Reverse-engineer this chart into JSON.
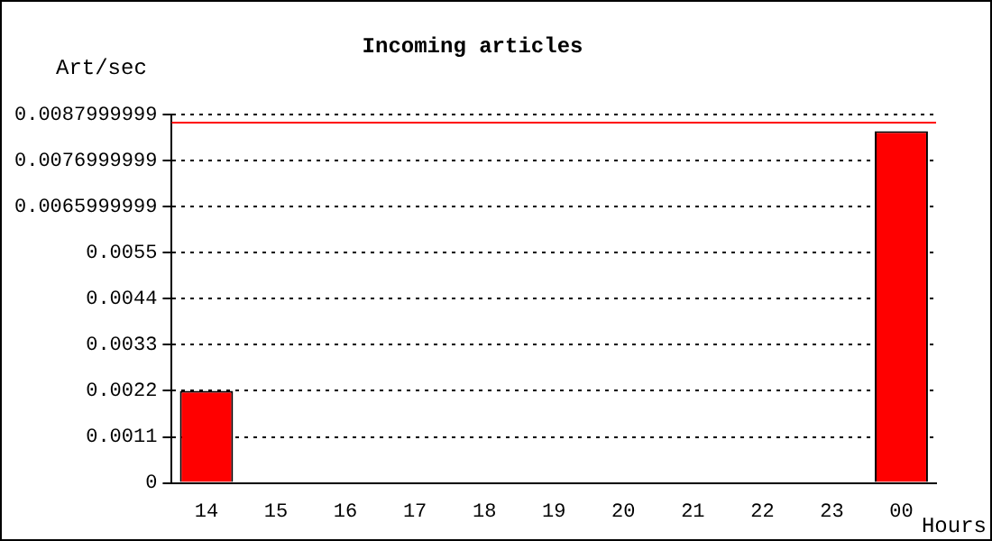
{
  "chart_data": {
    "type": "bar",
    "title": "Incoming articles",
    "xlabel": "Hours",
    "ylabel": "Art/sec",
    "categories": [
      "14",
      "15",
      "16",
      "17",
      "18",
      "19",
      "20",
      "21",
      "22",
      "23",
      "00"
    ],
    "values": [
      0.0022,
      0,
      0,
      0,
      0,
      0,
      0,
      0,
      0,
      0,
      0.0084
    ],
    "color": "#ff0000",
    "ylim": [
      0,
      0.0088
    ],
    "yticks": [
      0,
      0.0011,
      0.0022,
      0.0033,
      0.0044,
      0.0055,
      0.0065999999,
      0.0076999999,
      0.0087999999
    ],
    "ref_lines": [
      {
        "axis": "y",
        "value": 0.0086,
        "color": "#ff0000"
      }
    ],
    "grid": "y",
    "legend": false
  }
}
